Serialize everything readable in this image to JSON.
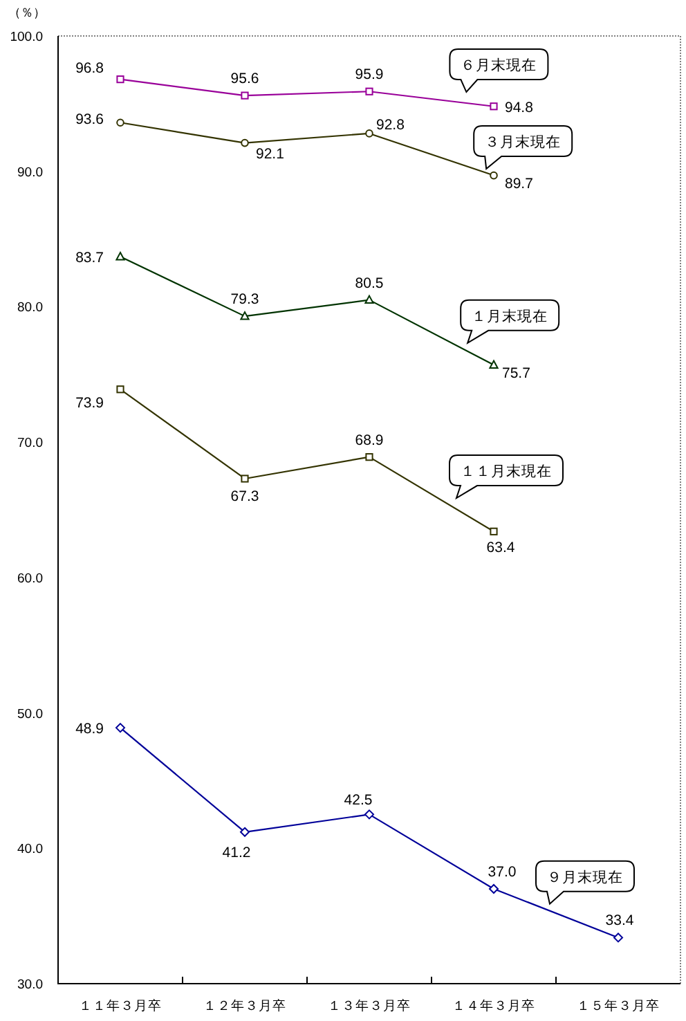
{
  "chart_data": {
    "type": "line",
    "ylabel": "（％）",
    "categories": [
      "１１年３月卒",
      "１２年３月卒",
      "１３年３月卒",
      "１４年３月卒",
      "１５年３月卒"
    ],
    "series": [
      {
        "name": "６月末現在",
        "color": "#990099",
        "marker": "square",
        "values": [
          96.8,
          95.6,
          95.9,
          94.8,
          null
        ],
        "value_labels": [
          "96.8",
          "95.6",
          "95.9",
          "94.8",
          null
        ]
      },
      {
        "name": "３月末現在",
        "color": "#333300",
        "marker": "circle",
        "values": [
          93.6,
          92.1,
          92.8,
          89.7,
          null
        ],
        "value_labels": [
          "93.6",
          "92.1",
          "92.8",
          "89.7",
          null
        ]
      },
      {
        "name": "１月末現在",
        "color": "#003300",
        "marker": "triangle",
        "values": [
          83.7,
          79.3,
          80.5,
          75.7,
          null
        ],
        "value_labels": [
          "83.7",
          "79.3",
          "80.5",
          "75.7",
          null
        ]
      },
      {
        "name": "１１月末現在",
        "color": "#333300",
        "marker": "square",
        "values": [
          73.9,
          67.3,
          68.9,
          63.4,
          null
        ],
        "value_labels": [
          "73.9",
          "67.3",
          "68.9",
          "63.4",
          null
        ]
      },
      {
        "name": "９月末現在",
        "color": "#000099",
        "marker": "diamond",
        "values": [
          48.9,
          41.2,
          42.5,
          37.0,
          33.4
        ],
        "value_labels": [
          "48.9",
          "41.2",
          "42.5",
          "37.0",
          "33.4"
        ]
      }
    ],
    "ylim": [
      30,
      100
    ],
    "yticks": [
      {
        "value": 30,
        "label": "30.0"
      },
      {
        "value": 40,
        "label": "40.0"
      },
      {
        "value": 50,
        "label": "50.0"
      },
      {
        "value": 60,
        "label": "60.0"
      },
      {
        "value": 70,
        "label": "70.0"
      },
      {
        "value": 80,
        "label": "80.0"
      },
      {
        "value": 90,
        "label": "90.0"
      },
      {
        "value": 100,
        "label": "100.0"
      }
    ],
    "line_style": "solid"
  }
}
